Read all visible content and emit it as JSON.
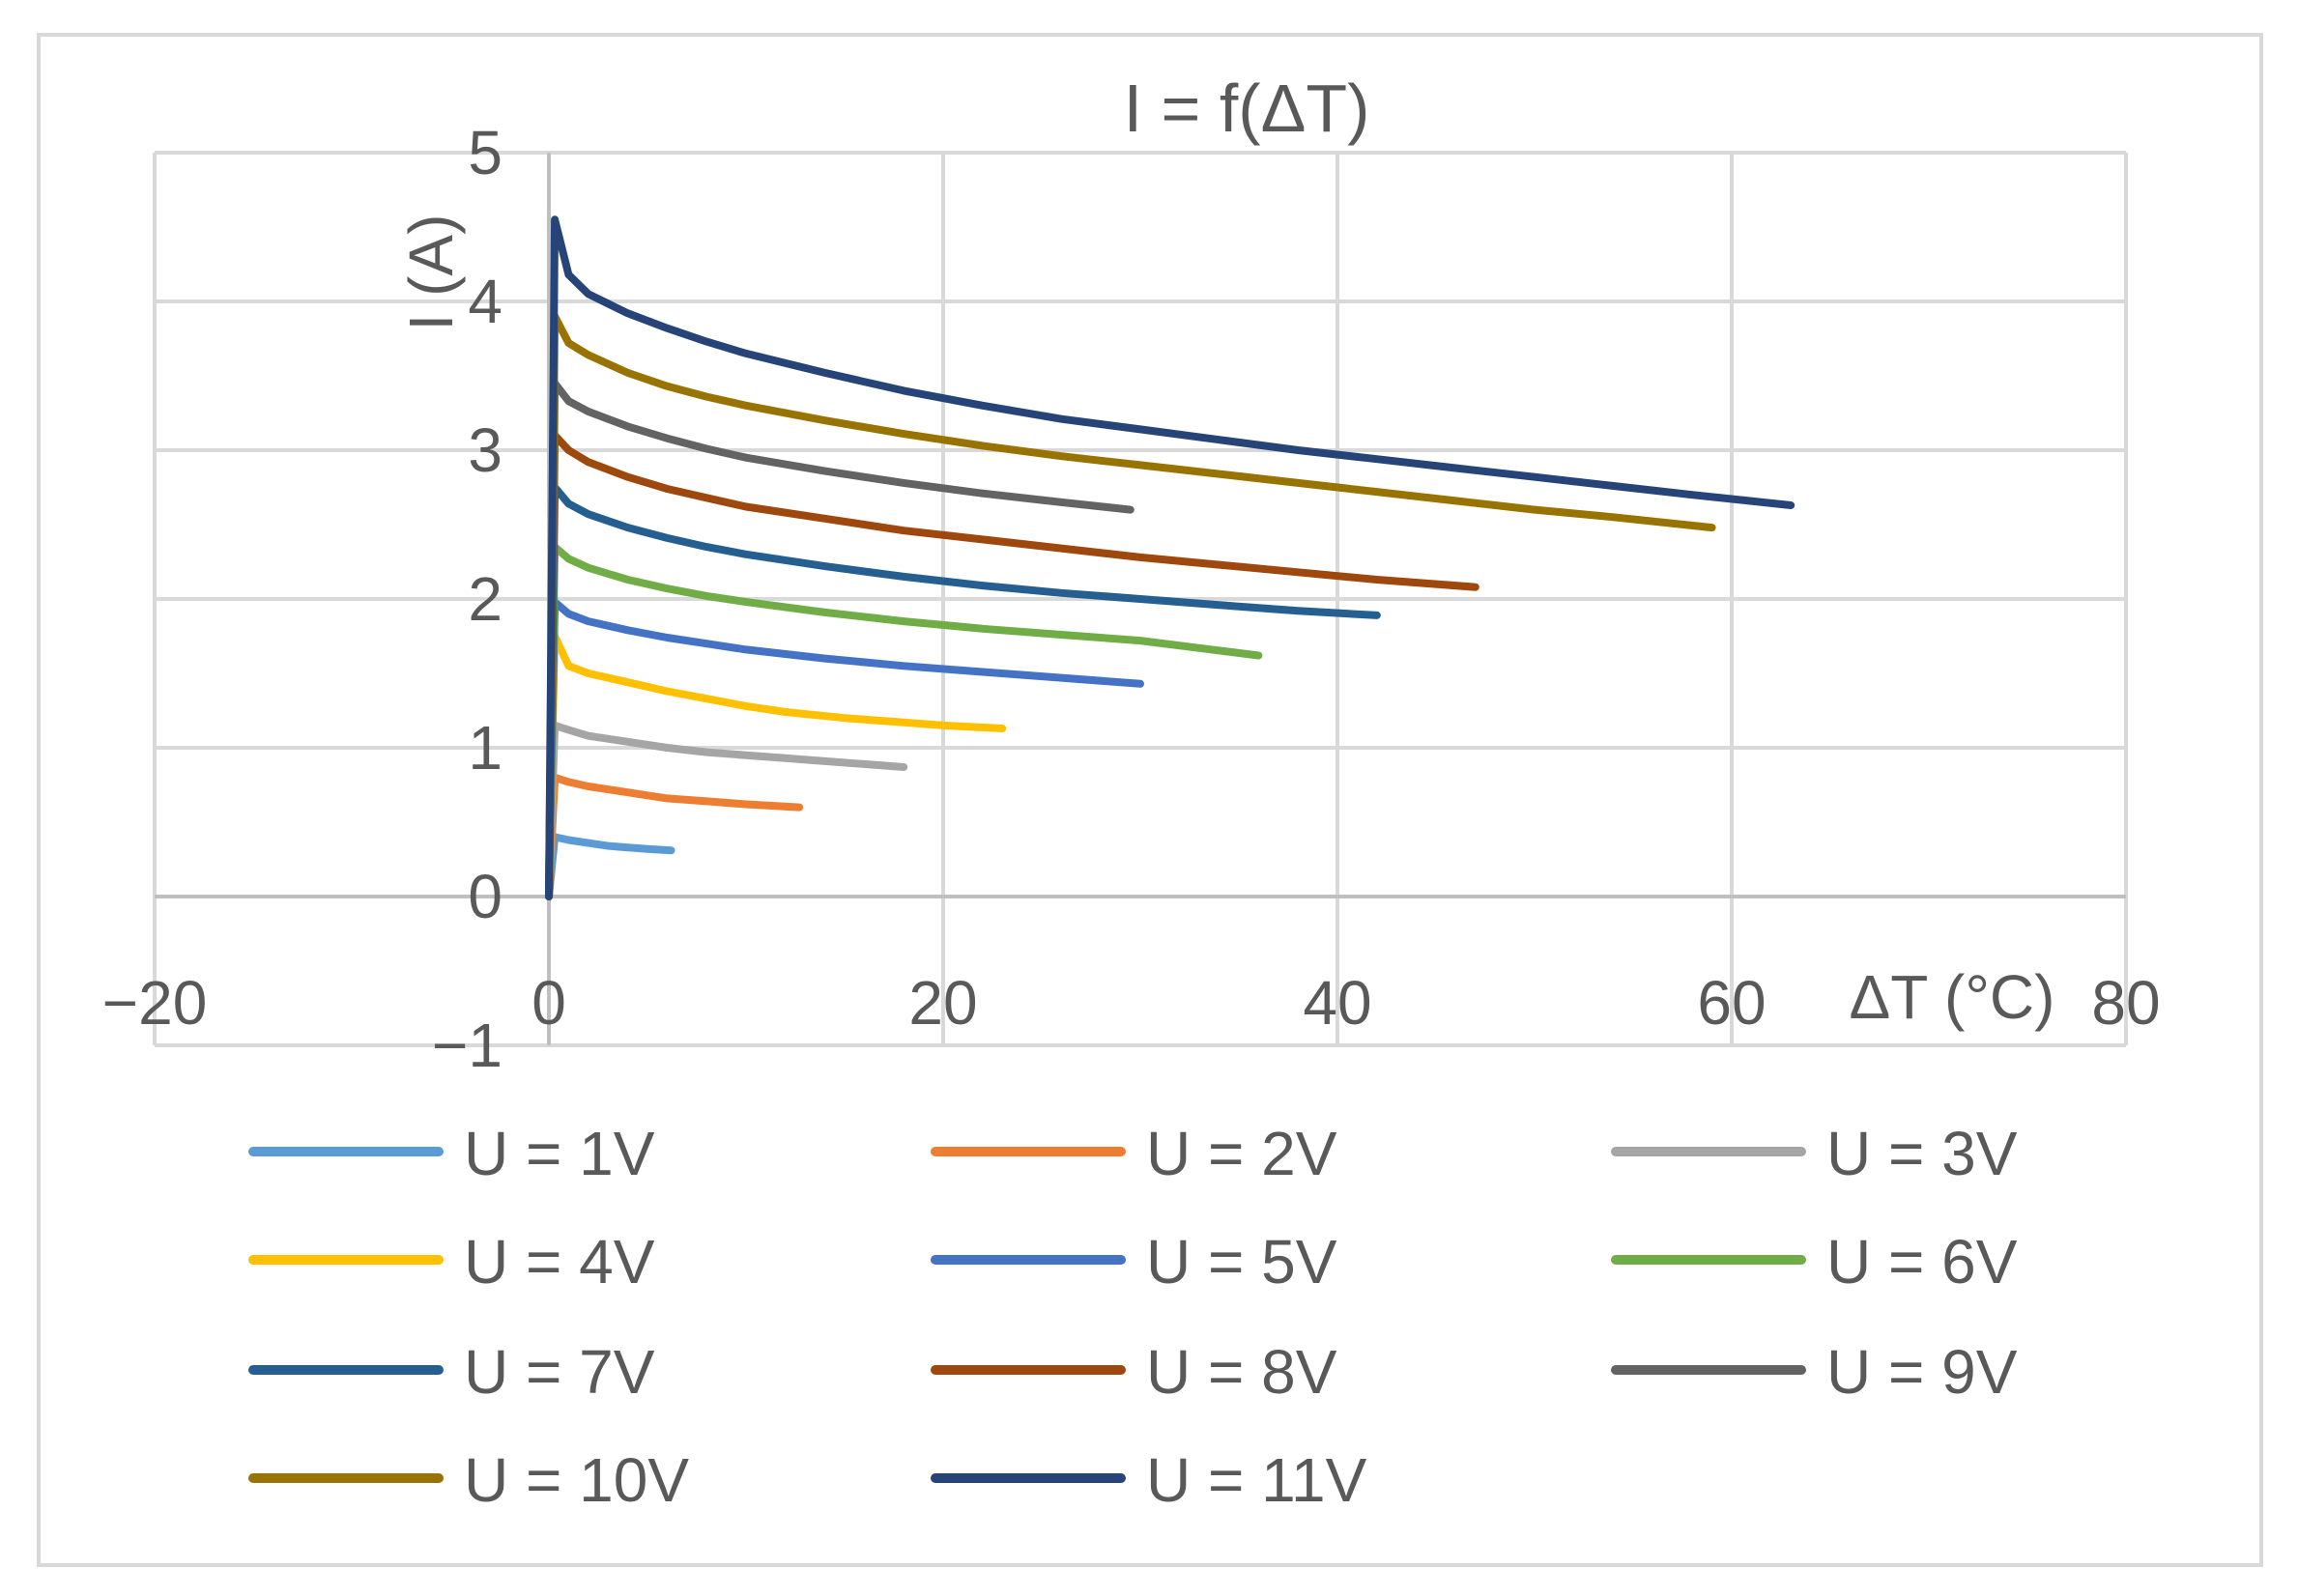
{
  "chart_data": {
    "type": "line",
    "title": "I = f(ΔT)",
    "xlabel": "ΔT (°C)",
    "ylabel": "I (A)",
    "xlim": [
      -20,
      80
    ],
    "ylim": [
      -1,
      5
    ],
    "x_ticks": [
      "−20",
      "0",
      "20",
      "40",
      "60",
      "80"
    ],
    "y_ticks": [
      "−1",
      "0",
      "1",
      "2",
      "3",
      "4",
      "5"
    ],
    "grid": true,
    "legend_position": "bottom",
    "series": [
      {
        "name": "U = 1V",
        "color": "#5b9bd5",
        "x": [
          0,
          0.3,
          1,
          2,
          3,
          4,
          5,
          6.2
        ],
        "y": [
          0,
          0.4,
          0.38,
          0.36,
          0.34,
          0.33,
          0.32,
          0.31
        ]
      },
      {
        "name": "U = 2V",
        "color": "#ed7d31",
        "x": [
          0,
          0.3,
          1,
          2,
          4,
          6,
          8,
          10,
          12.7
        ],
        "y": [
          0,
          0.8,
          0.77,
          0.74,
          0.7,
          0.66,
          0.64,
          0.62,
          0.6
        ]
      },
      {
        "name": "U = 3V",
        "color": "#a5a5a5",
        "x": [
          0,
          0.3,
          1,
          2,
          4,
          6,
          8,
          10,
          12,
          14,
          16,
          18
        ],
        "y": [
          0,
          1.15,
          1.12,
          1.08,
          1.04,
          1.0,
          0.97,
          0.95,
          0.93,
          0.91,
          0.89,
          0.87
        ]
      },
      {
        "name": "U = 4V",
        "color": "#ffc000",
        "x": [
          0,
          0.3,
          1,
          2,
          4,
          6,
          8,
          10,
          12,
          15,
          18,
          20,
          23
        ],
        "y": [
          0,
          1.75,
          1.55,
          1.5,
          1.44,
          1.38,
          1.33,
          1.28,
          1.24,
          1.2,
          1.17,
          1.15,
          1.13
        ]
      },
      {
        "name": "U = 5V",
        "color": "#4472c4",
        "x": [
          0,
          0.3,
          1,
          2,
          4,
          6,
          8,
          10,
          14,
          18,
          22,
          26,
          30
        ],
        "y": [
          0,
          1.98,
          1.9,
          1.85,
          1.79,
          1.74,
          1.7,
          1.66,
          1.6,
          1.55,
          1.51,
          1.47,
          1.43
        ]
      },
      {
        "name": "U = 6V",
        "color": "#70ad47",
        "x": [
          0,
          0.3,
          1,
          2,
          4,
          6,
          8,
          10,
          14,
          18,
          22,
          26,
          30,
          33,
          36
        ],
        "y": [
          0,
          2.35,
          2.27,
          2.21,
          2.13,
          2.07,
          2.02,
          1.98,
          1.91,
          1.85,
          1.8,
          1.76,
          1.72,
          1.67,
          1.62
        ]
      },
      {
        "name": "U = 7V",
        "color": "#255e91",
        "x": [
          0,
          0.3,
          1,
          2,
          4,
          6,
          8,
          10,
          14,
          18,
          22,
          26,
          30,
          34,
          38,
          42
        ],
        "y": [
          0,
          2.75,
          2.64,
          2.57,
          2.48,
          2.41,
          2.35,
          2.3,
          2.22,
          2.15,
          2.09,
          2.04,
          2.0,
          1.96,
          1.92,
          1.89
        ]
      },
      {
        "name": "U = 8V",
        "color": "#9e480e",
        "x": [
          0,
          0.3,
          1,
          2,
          4,
          6,
          8,
          10,
          14,
          18,
          22,
          26,
          30,
          34,
          38,
          42,
          47
        ],
        "y": [
          0,
          3.1,
          3.0,
          2.92,
          2.82,
          2.74,
          2.68,
          2.62,
          2.54,
          2.46,
          2.4,
          2.34,
          2.28,
          2.23,
          2.18,
          2.13,
          2.08
        ]
      },
      {
        "name": "U = 9V",
        "color": "#636363",
        "x": [
          0,
          0.3,
          1,
          2,
          4,
          6,
          8,
          10,
          14,
          18,
          22,
          26,
          29.5
        ],
        "y": [
          0,
          3.45,
          3.33,
          3.26,
          3.16,
          3.08,
          3.01,
          2.95,
          2.86,
          2.78,
          2.71,
          2.65,
          2.6
        ]
      },
      {
        "name": "U = 10V",
        "color": "#997300",
        "x": [
          0,
          0.3,
          1,
          2,
          4,
          6,
          8,
          10,
          14,
          18,
          22,
          26,
          30,
          34,
          38,
          42,
          46,
          50,
          54,
          59
        ],
        "y": [
          0,
          3.9,
          3.72,
          3.64,
          3.52,
          3.43,
          3.36,
          3.3,
          3.2,
          3.11,
          3.03,
          2.96,
          2.9,
          2.84,
          2.78,
          2.72,
          2.66,
          2.6,
          2.55,
          2.48
        ]
      },
      {
        "name": "U = 11V",
        "color": "#264478",
        "x": [
          0,
          0.3,
          1,
          2,
          4,
          6,
          8,
          10,
          14,
          18,
          22,
          26,
          30,
          34,
          38,
          42,
          46,
          50,
          54,
          58,
          63
        ],
        "y": [
          0,
          4.55,
          4.18,
          4.05,
          3.92,
          3.82,
          3.73,
          3.65,
          3.52,
          3.4,
          3.3,
          3.21,
          3.14,
          3.07,
          3.0,
          2.94,
          2.88,
          2.82,
          2.76,
          2.7,
          2.63
        ]
      }
    ]
  }
}
